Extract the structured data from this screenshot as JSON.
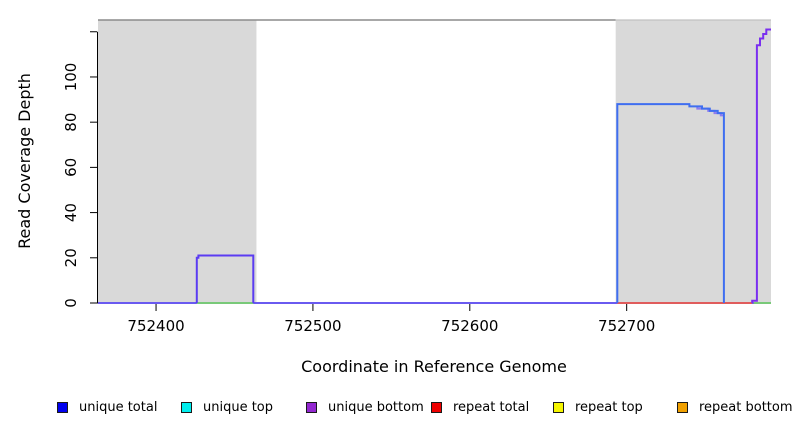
{
  "chart_data": {
    "type": "line",
    "title": "",
    "xlabel": "Coordinate in Reference Genome",
    "ylabel": "Read Coverage Depth",
    "xlim": [
      752363,
      752792
    ],
    "ylim": [
      0,
      121
    ],
    "grid": false,
    "legend_position": "bottom",
    "x_ticks": [
      752400,
      752500,
      752600,
      752700
    ],
    "y_ticks": [
      0,
      20,
      40,
      60,
      80,
      100,
      120
    ],
    "y_tick_labels": [
      "0",
      "20",
      "40",
      "60",
      "80",
      "100",
      ""
    ],
    "shaded_regions": [
      {
        "x0": 752363,
        "x1": 752464,
        "color": "#d9d9d9"
      },
      {
        "x0": 752693,
        "x1": 752792,
        "color": "#d9d9d9"
      }
    ],
    "border_colors": {
      "top_left": "#8c8c8c",
      "top_right_faint": "#c2c2c2",
      "axis": "#000000"
    },
    "legend": [
      {
        "label": "unique total",
        "color": "#0000ee"
      },
      {
        "label": "unique top",
        "color": "#00eeee"
      },
      {
        "label": "unique bottom",
        "color": "#9327d0"
      },
      {
        "label": "repeat total",
        "color": "#ee0000"
      },
      {
        "label": "repeat top",
        "color": "#f5f500"
      },
      {
        "label": "repeat bottom",
        "color": "#f0a000"
      }
    ],
    "traces": [
      {
        "name": "zero-baseline-unique-mix",
        "series": "unique total + unique bottom at 0",
        "color": "#6a5af0",
        "width": 2,
        "points": [
          [
            752363,
            0
          ],
          [
            752792,
            0
          ]
        ]
      },
      {
        "name": "zero-green-left",
        "series": "unique top over repeat top at 0",
        "color": "#79c979",
        "width": 2,
        "points": [
          [
            752426,
            0
          ],
          [
            752462,
            0
          ]
        ]
      },
      {
        "name": "zero-green-right",
        "series": "unique top over repeat top at 0",
        "color": "#79c979",
        "width": 2,
        "points": [
          [
            752781,
            0
          ],
          [
            752792,
            0
          ]
        ]
      },
      {
        "name": "repeat-total-zero",
        "series": "repeat total",
        "color": "#e05c5c",
        "width": 2,
        "points": [
          [
            752694,
            0
          ],
          [
            752780,
            0
          ]
        ]
      },
      {
        "name": "unique-bottom-under-blue",
        "series": "unique bottom",
        "color": "#8f7cf0",
        "width": 2,
        "points": [
          [
            752745,
            87
          ],
          [
            752745,
            86
          ],
          [
            752752,
            86
          ],
          [
            752752,
            85
          ],
          [
            752756,
            85
          ],
          [
            752756,
            84
          ],
          [
            752760,
            84
          ],
          [
            752760,
            83
          ],
          [
            752762,
            83
          ]
        ]
      },
      {
        "name": "unique-total-tall",
        "series": "unique total",
        "color": "#3f6ef0",
        "width": 2,
        "points": [
          [
            752694,
            0
          ],
          [
            752694,
            88
          ],
          [
            752740,
            88
          ],
          [
            752740,
            87
          ],
          [
            752748,
            87
          ],
          [
            752748,
            86
          ],
          [
            752753,
            86
          ],
          [
            752753,
            85
          ],
          [
            752758,
            85
          ],
          [
            752758,
            84
          ],
          [
            752762,
            84
          ],
          [
            752762,
            0
          ]
        ]
      },
      {
        "name": "unique-bump",
        "series": "unique total + unique bottom",
        "color": "#5b3cf2",
        "width": 2,
        "points": [
          [
            752426,
            0
          ],
          [
            752426,
            20
          ],
          [
            752427,
            20
          ],
          [
            752427,
            21
          ],
          [
            752462,
            21
          ],
          [
            752462,
            0
          ]
        ]
      },
      {
        "name": "unique-bottom-spike",
        "series": "unique bottom",
        "color": "#7a2ff0",
        "width": 2,
        "points": [
          [
            752780,
            0
          ],
          [
            752780,
            1
          ],
          [
            752783,
            1
          ],
          [
            752783,
            114
          ],
          [
            752785,
            114
          ],
          [
            752785,
            117
          ],
          [
            752787,
            117
          ],
          [
            752787,
            119
          ],
          [
            752789,
            119
          ],
          [
            752789,
            121
          ],
          [
            752792,
            121
          ]
        ]
      }
    ]
  }
}
